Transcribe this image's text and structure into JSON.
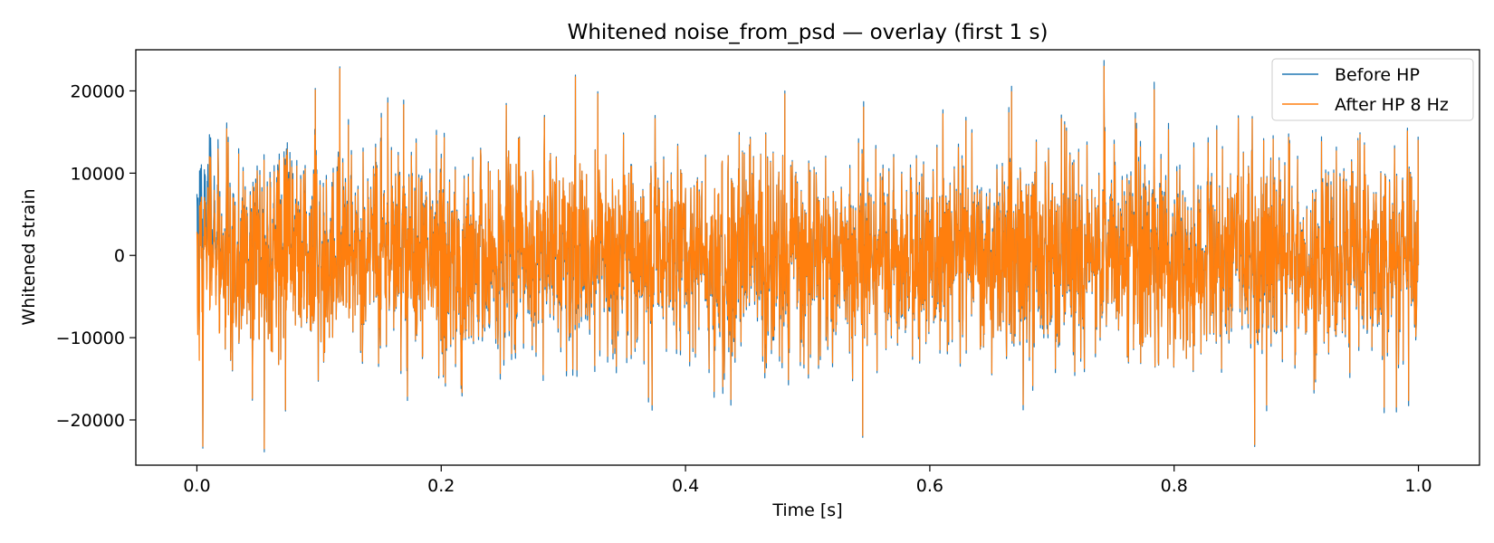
{
  "chart_data": {
    "type": "line",
    "title": "Whitened noise_from_psd — overlay (first 1 s)",
    "xlabel": "Time [s]",
    "ylabel": "Whitened strain",
    "xlim": [
      -0.05,
      1.05
    ],
    "ylim": [
      -25500,
      25000
    ],
    "xticks": [
      0.0,
      0.2,
      0.4,
      0.6,
      0.8,
      1.0
    ],
    "xtick_labels": [
      "0.0",
      "0.2",
      "0.4",
      "0.6",
      "0.8",
      "1.0"
    ],
    "yticks": [
      -20000,
      -10000,
      0,
      10000,
      20000
    ],
    "ytick_labels": [
      "−20000",
      "−10000",
      "0",
      "10000",
      "20000"
    ],
    "legend_position": "top-right",
    "grid": false,
    "sample_count": 4096,
    "series": [
      {
        "name": "Before HP",
        "color": "#1f77b4",
        "description_stats": {
          "approx_amplitude_std": 6000,
          "peak_max": 22800,
          "peak_min": -23200
        }
      },
      {
        "name": "After HP 8 Hz",
        "color": "#ff7f0e",
        "description_stats": {
          "approx_amplitude_std": 5900,
          "peak_max": 22700,
          "peak_min": -23300
        }
      }
    ],
    "notable_peaks": [
      {
        "x": 0.117,
        "y": 22700
      },
      {
        "x": 0.31,
        "y": 21700
      },
      {
        "x": 0.097,
        "y": 20100
      },
      {
        "x": 0.005,
        "y": -23200
      },
      {
        "x": 0.866,
        "y": -23000
      },
      {
        "x": 0.545,
        "y": -21900
      }
    ]
  }
}
